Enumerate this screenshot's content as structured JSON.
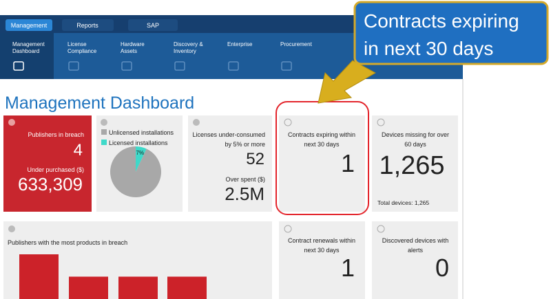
{
  "tabs": [
    "Management",
    "Reports",
    "SAP"
  ],
  "menu": [
    [
      "Management",
      "Dashboard"
    ],
    [
      "License",
      "Compliance"
    ],
    [
      "Hardware",
      "Assets"
    ],
    [
      "Discovery &",
      "Inventory"
    ],
    [
      "Enterprise"
    ],
    [
      "Procurement"
    ]
  ],
  "callout": [
    "Contracts expiring",
    "in next 30 days"
  ],
  "page_title": "Management Dashboard",
  "breach_card": {
    "label": "Publishers in breach",
    "value": 4,
    "sub_label": "Under purchased ($)",
    "sub_value": "633,309"
  },
  "pie_chart": {
    "type": "pie",
    "series": [
      {
        "name": "Unlicensed installations",
        "color": "#a8a8a8",
        "value": 93
      },
      {
        "name": "Licensed installations",
        "color": "#3fd9c9",
        "value": 7,
        "value_label": "7%"
      }
    ]
  },
  "licenses_card": {
    "label": [
      "Licenses under-consumed",
      "by 5% or more"
    ],
    "value": 52,
    "sub_label": "Over spent ($)",
    "sub_value": "2.5M"
  },
  "contracts_card": {
    "label": [
      "Contracts expiring within",
      "next 30 days"
    ],
    "value": 1
  },
  "devices_card": {
    "label": [
      "Devices missing for over",
      "60 days"
    ],
    "value": "1,265",
    "footer": "Total devices: 1,265"
  },
  "bar_chart": {
    "type": "bar",
    "title": "Publishers with the most products in breach",
    "color": "#cc2229",
    "values": [
      2,
      1,
      1,
      1
    ]
  },
  "renewals_card": {
    "label": [
      "Contract renewals within",
      "next 30 days"
    ],
    "value": 1
  },
  "alerts_card": {
    "label": [
      "Discovered devices with",
      "alerts"
    ],
    "value": 0
  }
}
